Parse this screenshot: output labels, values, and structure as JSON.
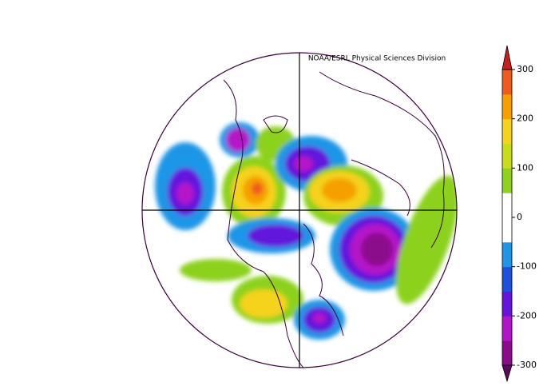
{
  "credit": "NOAA/ESRL Physical Sciences Division",
  "colorbar": {
    "lim": [
      -300,
      300
    ],
    "ticks": [
      -300,
      -200,
      -100,
      0,
      100,
      200,
      300
    ],
    "colors": [
      "#8c0a8c",
      "#b414c8",
      "#6414dc",
      "#1e50dc",
      "#1e96e6",
      "#ffffff",
      "#ffffff",
      "#8cd21e",
      "#c8dc1e",
      "#f5d21e",
      "#f5a000",
      "#f05a1e"
    ],
    "under": "#5a0a5a",
    "over": "#c81e1e"
  }
}
